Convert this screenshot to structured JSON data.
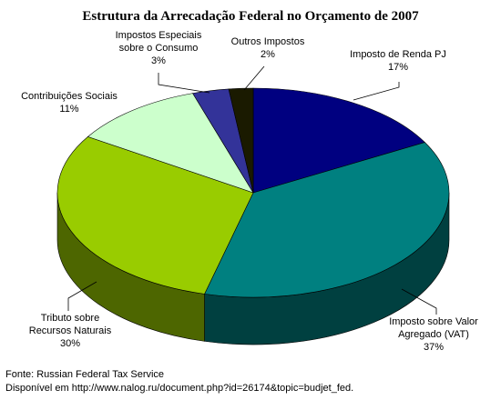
{
  "chart_data": {
    "type": "pie",
    "title": "Estrutura da Arrecadação Federal no Orçamento de 2007",
    "slices": [
      {
        "name": "Imposto de Renda PJ",
        "percent_label": "17%",
        "value": 17,
        "color": "#000080"
      },
      {
        "name": "Imposto sobre Valor Agregado (VAT)",
        "line1": "Imposto sobre Valor",
        "line2": "Agregado (VAT)",
        "percent_label": "37%",
        "value": 37,
        "color": "#008080"
      },
      {
        "name": "Tributo sobre Recursos Naturais",
        "line1": "Tributo sobre",
        "line2": "Recursos Naturais",
        "percent_label": "30%",
        "value": 30,
        "color": "#99cc00"
      },
      {
        "name": "Contribuições Sociais",
        "percent_label": "11%",
        "value": 11,
        "color": "#ccffcc"
      },
      {
        "name": "Impostos Especiais sobre o Consumo",
        "line1": "Impostos Especiais",
        "line2": "sobre o Consumo",
        "percent_label": "3%",
        "value": 3,
        "color": "#333399"
      },
      {
        "name": "Outros Impostos",
        "percent_label": "2%",
        "value": 2,
        "color": "#1a1a00"
      }
    ]
  },
  "footer": {
    "source": "Fonte: Russian Federal Tax Service",
    "url": "Disponível em http://www.nalog.ru/document.php?id=26174&topic=budjet_fed."
  }
}
